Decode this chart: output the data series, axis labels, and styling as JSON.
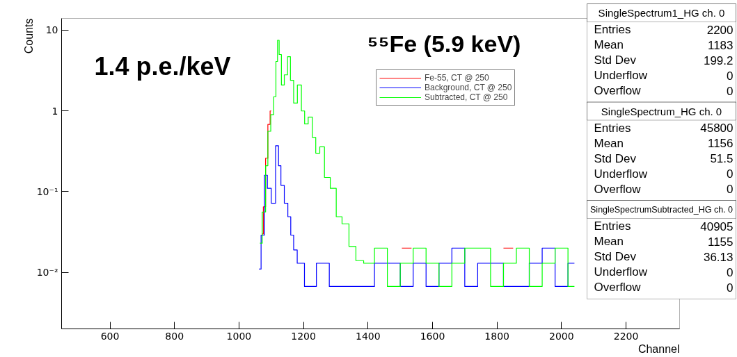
{
  "chart_data": {
    "type": "step",
    "xlabel": "Channel",
    "ylabel": "Counts",
    "log": "y",
    "grid": false,
    "legend": "top",
    "xlim": [
      450,
      2366
    ],
    "xticks": [
      600,
      800,
      1000,
      1200,
      1400,
      1600,
      1800,
      2000,
      2200
    ],
    "ylim": [
      0.002,
      14
    ],
    "yticks": [
      {
        "value": 0.01,
        "label": "10⁻²"
      },
      {
        "value": 0.1,
        "label": "10⁻¹"
      },
      {
        "value": 1,
        "label": "1"
      },
      {
        "value": 10,
        "label": "10"
      }
    ],
    "series": [
      {
        "name": "Fe-55, CT @ 250",
        "color": "#ff0000",
        "x": [
          1072,
          1079,
          1086,
          1093,
          1100,
          1480,
          1505,
          1535,
          1560,
          1790,
          1820,
          1850
        ],
        "values": [
          0.03,
          0.065,
          0.26,
          0.68,
          1.0,
          null,
          0.02,
          0.02,
          null,
          null,
          0.02,
          0.02
        ]
      },
      {
        "name": "Background, CT @ 250",
        "color": "#0000ff",
        "x": [
          1062,
          1075,
          1083,
          1093,
          1107,
          1120,
          1125,
          1135,
          1146,
          1157,
          1164,
          1175,
          1186,
          1220,
          1260,
          1300,
          1340,
          1380,
          1400,
          1440,
          1480,
          1520,
          1560,
          1600,
          1640,
          1680,
          1720,
          1760,
          1800,
          1840,
          1880,
          1920,
          1960,
          2000,
          2040
        ],
        "values": [
          0.011,
          0.029,
          0.16,
          0.11,
          0.072,
          0.37,
          0.21,
          0.12,
          0.072,
          0.049,
          0.029,
          0.019,
          0.013,
          0.0067,
          0.013,
          0.0067,
          0.0067,
          0.0067,
          0.0067,
          0.013,
          0.013,
          0.0067,
          0.013,
          0.0067,
          0.013,
          0.02,
          0.0067,
          0.013,
          0.013,
          0.0067,
          0.0067,
          0.013,
          0.02,
          0.0067,
          0.013
        ]
      },
      {
        "name": "Subtracted, CT @ 250",
        "color": "#00ff00",
        "x": [
          1065,
          1079,
          1086,
          1093,
          1104,
          1111,
          1118,
          1121,
          1128,
          1135,
          1146,
          1155,
          1164,
          1175,
          1187,
          1200,
          1207,
          1222,
          1233,
          1243,
          1258,
          1272,
          1294,
          1309,
          1330,
          1352,
          1373,
          1400,
          1440,
          1480,
          1520,
          1560,
          1600,
          1640,
          1680,
          1720,
          1760,
          1800,
          1840,
          1880,
          1920,
          1960,
          2000,
          2040
        ],
        "values": [
          0.023,
          0.056,
          0.21,
          0.56,
          0.9,
          1.5,
          4.1,
          7.5,
          5.0,
          2.1,
          2.8,
          4.7,
          2.4,
          1.25,
          2.1,
          1.0,
          0.69,
          0.84,
          0.47,
          0.3,
          0.36,
          0.15,
          0.11,
          0.049,
          0.04,
          0.021,
          0.014,
          0.013,
          0.02,
          0.0067,
          0.013,
          0.02,
          0.013,
          0.0067,
          0.013,
          0.02,
          0.02,
          0.0067,
          0.013,
          0.02,
          0.0067,
          0.013,
          0.02,
          0.0067
        ]
      }
    ],
    "annotations": [
      "1.4 p.e./keV",
      "⁵⁵Fe (5.9 keV)",
      "SingleSpectrum1_HG ch. 0\nEntries\t2200\nMean\t1183\nStd Dev\t199.2\nUnderflow\t0\nOverflow\t0",
      "SingleSpectrum_HG ch. 0\nEntries\t45800\nMean\t1156\nStd Dev\t51.5\nUnderflow\t0\nOverflow\t0",
      "SingleSpectrumSubtracted_HG ch. 0\nEntries\t40905\nMean\t1155\nStd Dev\t36.13\nUnderflow\t0\nOverflow\t0"
    ]
  }
}
